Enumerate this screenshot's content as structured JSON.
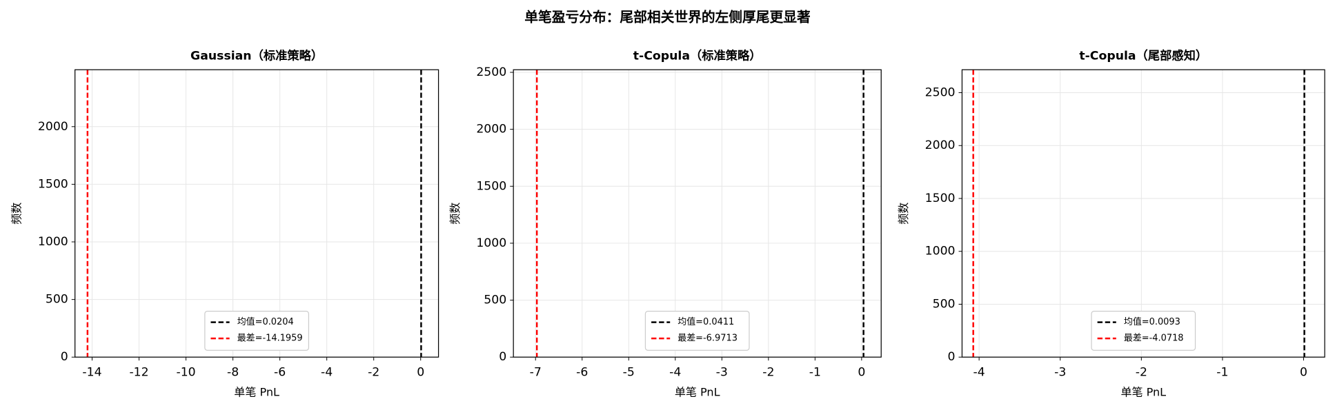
{
  "title": "单笔盈亏分布：尾部相关世界的左侧厚尾更显著",
  "chart_data": [
    {
      "type": "vline",
      "title": "Gaussian（标准策略）",
      "xlabel": "单笔 PnL",
      "ylabel": "频数",
      "series": [
        {
          "name": "均值=0.0204",
          "color": "#000000",
          "values": [
            0.0204
          ]
        },
        {
          "name": "最差=-14.1959",
          "color": "#ff0000",
          "values": [
            -14.1959
          ]
        }
      ],
      "xlim": [
        -14.73,
        0.76
      ],
      "xticks": [
        -14,
        -12,
        -10,
        -8,
        -6,
        -4,
        -2,
        0
      ],
      "ylim": [
        0,
        2494
      ],
      "yticks": [
        0,
        500,
        1000,
        1500,
        2000
      ],
      "grid": true,
      "legend": "lower center"
    },
    {
      "type": "vline",
      "title": "t-Copula（标准策略）",
      "xlabel": "单笔 PnL",
      "ylabel": "频数",
      "series": [
        {
          "name": "均值=0.0411",
          "color": "#000000",
          "values": [
            0.0411
          ]
        },
        {
          "name": "最差=-6.9713",
          "color": "#ff0000",
          "values": [
            -6.9713
          ]
        }
      ],
      "xlim": [
        -7.475,
        0.42
      ],
      "xticks": [
        -7,
        -6,
        -5,
        -4,
        -3,
        -2,
        -1,
        0
      ],
      "ylim": [
        0,
        2523
      ],
      "yticks": [
        0,
        500,
        1000,
        1500,
        2000,
        2500
      ],
      "grid": true,
      "legend": "lower center"
    },
    {
      "type": "vline",
      "title": "t-Copula（尾部感知）",
      "xlabel": "单笔 PnL",
      "ylabel": "频数",
      "series": [
        {
          "name": "均值=0.0093",
          "color": "#000000",
          "values": [
            0.0093
          ]
        },
        {
          "name": "最差=-4.0718",
          "color": "#ff0000",
          "values": [
            -4.0718
          ]
        }
      ],
      "xlim": [
        -4.21,
        0.26
      ],
      "xticks": [
        -4,
        -3,
        -2,
        -1,
        0
      ],
      "ylim": [
        0,
        2717
      ],
      "yticks": [
        0,
        500,
        1000,
        1500,
        2000,
        2500
      ],
      "grid": true,
      "legend": "lower center"
    }
  ]
}
